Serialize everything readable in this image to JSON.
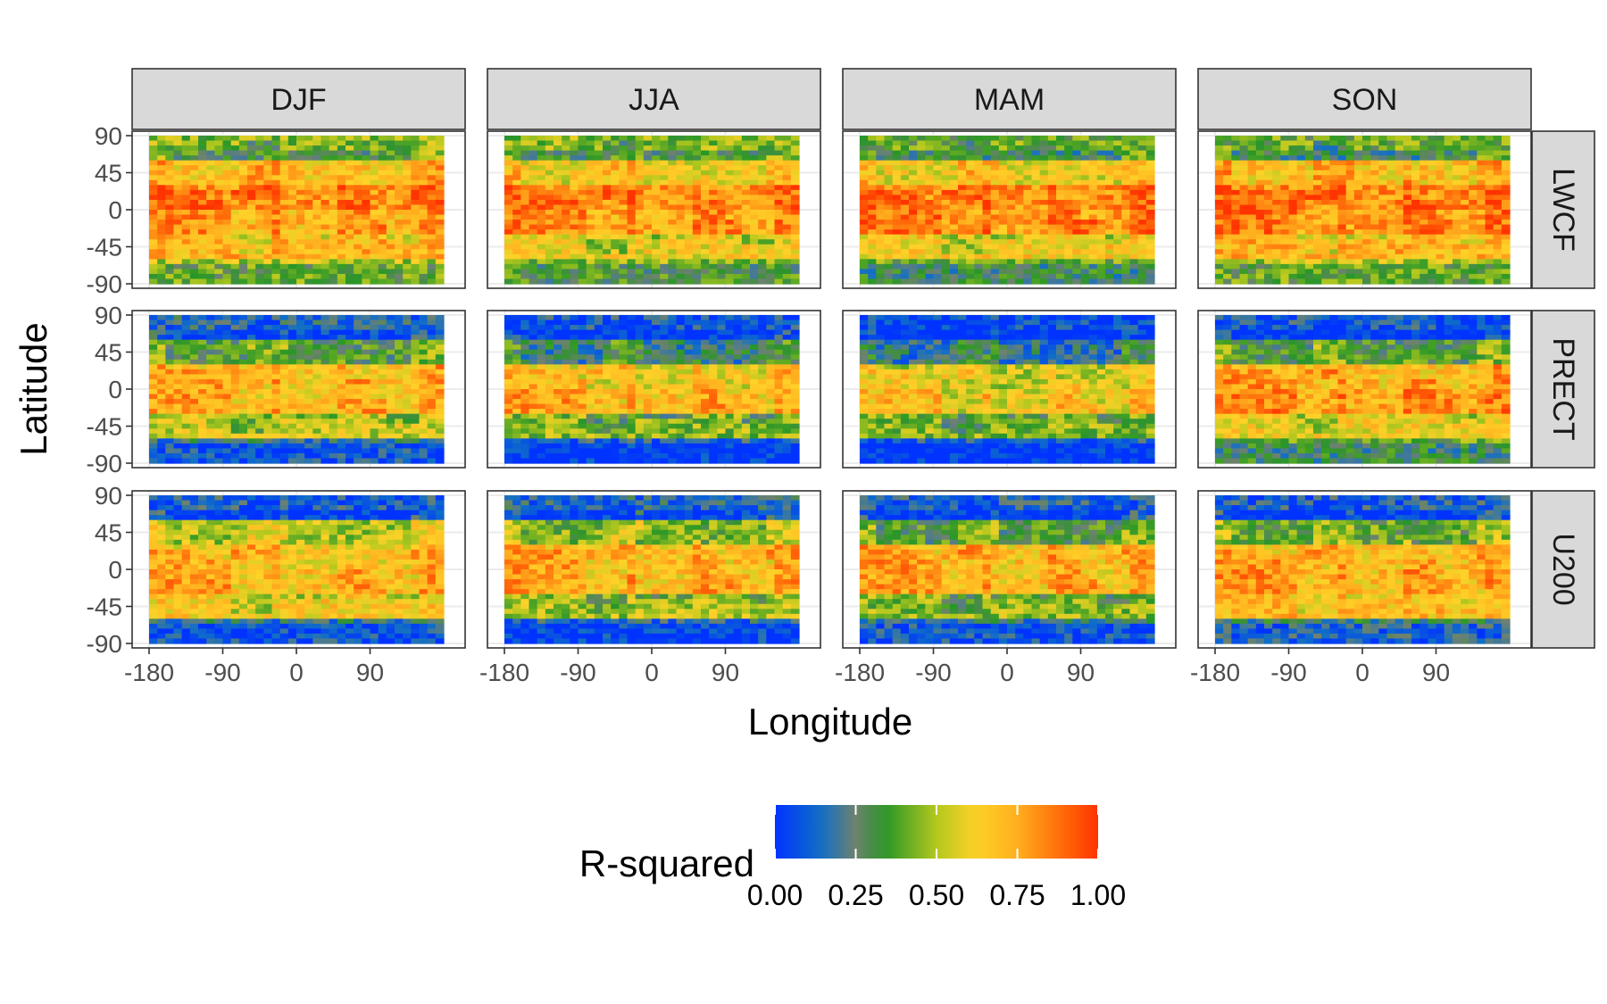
{
  "chart_data": {
    "type": "heatmap",
    "facet_cols": [
      "DJF",
      "JJA",
      "MAM",
      "SON"
    ],
    "facet_rows": [
      "LWCF",
      "PRECT",
      "U200"
    ],
    "xlabel": "Longitude",
    "ylabel": "Latitude",
    "x_ticks": [
      -180,
      -90,
      0,
      90
    ],
    "y_ticks": [
      90,
      45,
      0,
      -45,
      -90
    ],
    "xlim": [
      -180,
      180
    ],
    "ylim": [
      -90,
      90
    ],
    "grid": true,
    "legend": {
      "title": "R-squared",
      "position": "bottom",
      "ticks": [
        "0.00",
        "0.25",
        "0.50",
        "0.75",
        "1.00"
      ],
      "colors": [
        "#0033ff",
        "#2f8f2f",
        "#ffcc33",
        "#ff3300"
      ],
      "range": [
        0,
        1
      ]
    },
    "panel_means_by_latitude_band": {
      "lat_bands": [
        -90,
        -60,
        -30,
        0,
        30,
        60,
        90
      ],
      "LWCF": {
        "DJF": [
          0.5,
          0.72,
          0.82,
          0.92,
          0.78,
          0.45
        ],
        "JJA": [
          0.45,
          0.62,
          0.85,
          0.9,
          0.72,
          0.45
        ],
        "MAM": [
          0.4,
          0.65,
          0.88,
          0.92,
          0.72,
          0.4
        ],
        "SON": [
          0.5,
          0.72,
          0.88,
          0.92,
          0.78,
          0.4
        ]
      },
      "PRECT": {
        "DJF": [
          0.2,
          0.55,
          0.78,
          0.78,
          0.45,
          0.15
        ],
        "JJA": [
          0.12,
          0.45,
          0.78,
          0.72,
          0.35,
          0.1
        ],
        "MAM": [
          0.1,
          0.45,
          0.7,
          0.65,
          0.3,
          0.05
        ],
        "SON": [
          0.4,
          0.62,
          0.85,
          0.8,
          0.45,
          0.1
        ]
      },
      "U200": {
        "DJF": [
          0.2,
          0.65,
          0.78,
          0.75,
          0.62,
          0.12
        ],
        "JJA": [
          0.15,
          0.5,
          0.78,
          0.78,
          0.55,
          0.15
        ],
        "MAM": [
          0.2,
          0.45,
          0.78,
          0.78,
          0.45,
          0.12
        ],
        "SON": [
          0.25,
          0.7,
          0.8,
          0.78,
          0.5,
          0.12
        ]
      }
    }
  }
}
